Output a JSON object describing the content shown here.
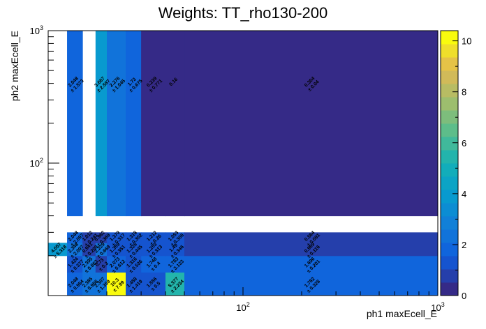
{
  "chart_data": {
    "type": "heatmap",
    "title": "Weights: TT_rho130-200",
    "xlabel": "ph1 maxEcell_E",
    "ylabel": "ph2 maxEcell_E",
    "xscale": "log",
    "yscale": "log",
    "xlim": [
      10,
      1000
    ],
    "ylim": [
      10,
      1000
    ],
    "x_ticks": [
      {
        "base": "10",
        "exp": "2",
        "value": 100
      },
      {
        "base": "10",
        "exp": "3",
        "value": 1000
      }
    ],
    "y_ticks": [
      {
        "base": "10",
        "exp": "2",
        "value": 100
      },
      {
        "base": "10",
        "exp": "3",
        "value": 1000
      }
    ],
    "x_edges": [
      10,
      12.5,
      15,
      17.5,
      20,
      25,
      30,
      40,
      50,
      1000
    ],
    "y_edges": [
      10,
      15,
      20,
      25,
      30,
      40,
      1000
    ],
    "z_range": [
      0,
      10.4
    ],
    "colorbar_ticks": [
      "0",
      "2",
      "4",
      "6",
      "8",
      "10"
    ],
    "cells": [
      {
        "ix": 1,
        "iy": 0,
        "value": 2.048,
        "error": 0.954
      },
      {
        "ix": 2,
        "iy": 0,
        "value": 2.385,
        "error": 0.956
      },
      {
        "ix": 3,
        "iy": 0,
        "value": 2.307,
        "error": 1.359
      },
      {
        "ix": 4,
        "iy": 0,
        "value": 10.3,
        "error": 7.99
      },
      {
        "ix": 5,
        "iy": 0,
        "value": 1.458,
        "error": 1.419
      },
      {
        "ix": 6,
        "iy": 0,
        "value": 1.556,
        "error": 0.5
      },
      {
        "ix": 7,
        "iy": 0,
        "value": 5.377,
        "error": 2.234
      },
      {
        "ix": 8,
        "iy": 0,
        "value": 1.782,
        "error": 0.328
      },
      {
        "ix": 1,
        "iy": 1,
        "value": 1.424,
        "error": 0.377
      },
      {
        "ix": 2,
        "iy": 1,
        "value": 2.395,
        "error": 0.863
      },
      {
        "ix": 3,
        "iy": 1,
        "value": 0.73,
        "error": 0.3
      },
      {
        "ix": 4,
        "iy": 1,
        "value": 2.073,
        "error": 0.612
      },
      {
        "ix": 5,
        "iy": 1,
        "value": 1.316,
        "error": 0.536
      },
      {
        "ix": 6,
        "iy": 1,
        "value": 1.748,
        "error": 0.4
      },
      {
        "ix": 7,
        "iy": 1,
        "value": 1.783,
        "error": 3.133
      },
      {
        "ix": 8,
        "iy": 1,
        "value": 1.696,
        "error": 0.201
      },
      {
        "ix": 0,
        "iy": 2,
        "value": 4.057,
        "error": 5.318
      },
      {
        "ix": 1,
        "iy": 2,
        "value": 2.348,
        "error": 2.097
      },
      {
        "ix": 2,
        "iy": 2,
        "value": 0.941,
        "error": 0.208
      },
      {
        "ix": 3,
        "iy": 2,
        "value": 2.229,
        "error": 0.669
      },
      {
        "ix": 4,
        "iy": 2,
        "value": 1.359,
        "error": 0.351
      },
      {
        "ix": 5,
        "iy": 2,
        "value": 1.326,
        "error": 0.445
      },
      {
        "ix": 6,
        "iy": 2,
        "value": 1.253,
        "error": 0.313
      },
      {
        "ix": 7,
        "iy": 2,
        "value": 1.49,
        "error": 0.346
      },
      {
        "ix": 8,
        "iy": 2,
        "value": 0.969,
        "error": 0.116
      },
      {
        "ix": 1,
        "iy": 3,
        "value": 2.048,
        "error": 2.097
      },
      {
        "ix": 2,
        "iy": 3,
        "value": 1.012,
        "error": 0.241
      },
      {
        "ix": 3,
        "iy": 3,
        "value": 0.962,
        "error": 0.369
      },
      {
        "ix": 4,
        "iy": 3,
        "value": 1.379,
        "error": 0.317
      },
      {
        "ix": 5,
        "iy": 3,
        "value": 1.318,
        "error": 0.302
      },
      {
        "ix": 6,
        "iy": 3,
        "value": 1.212,
        "error": 0.26
      },
      {
        "ix": 7,
        "iy": 3,
        "value": 1.053,
        "error": 0.306
      },
      {
        "ix": 8,
        "iy": 3,
        "value": 0.564,
        "error": 0.091
      },
      {
        "ix": 1,
        "iy": 5,
        "value": 2.048,
        "error": 1.573
      },
      {
        "ix": 2,
        "iy": 5,
        "value": null,
        "error": null
      },
      {
        "ix": 3,
        "iy": 5,
        "value": 3.667,
        "error": 2.587
      },
      {
        "ix": 4,
        "iy": 5,
        "value": 2.276,
        "error": 1.045
      },
      {
        "ix": 5,
        "iy": 5,
        "value": 1.73,
        "error": 0.675
      },
      {
        "ix": 6,
        "iy": 5,
        "value": 0.239,
        "error": 0.771
      },
      {
        "ix": 7,
        "iy": 5,
        "value": 0.16,
        "error": null
      },
      {
        "ix": 8,
        "iy": 5,
        "value": 0.304,
        "error": 0.04
      }
    ]
  }
}
